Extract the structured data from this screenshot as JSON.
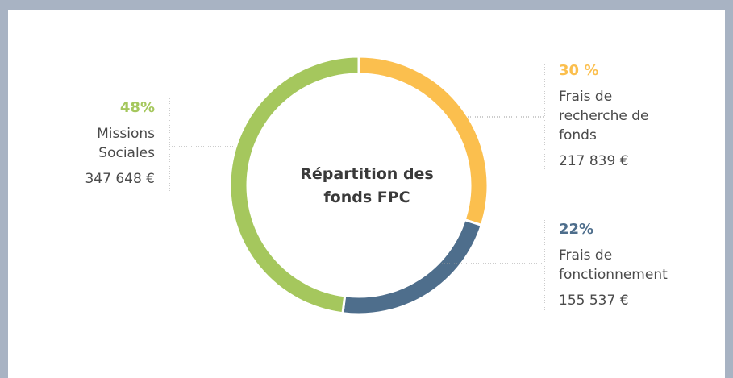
{
  "chart_data": {
    "type": "donut",
    "title": "Répartition des fonds FPC",
    "categories": [
      "Frais de recherche de fonds",
      "Frais de fonctionnement",
      "Missions Sociales"
    ],
    "values": [
      30,
      22,
      48
    ],
    "value_labels": [
      "30 %",
      "22%",
      "48%"
    ],
    "amounts": [
      "217 839 €",
      "155 537 €",
      "347 648 €"
    ],
    "colors": [
      "#fbbf4e",
      "#4e6e8c",
      "#a5c75d"
    ]
  }
}
